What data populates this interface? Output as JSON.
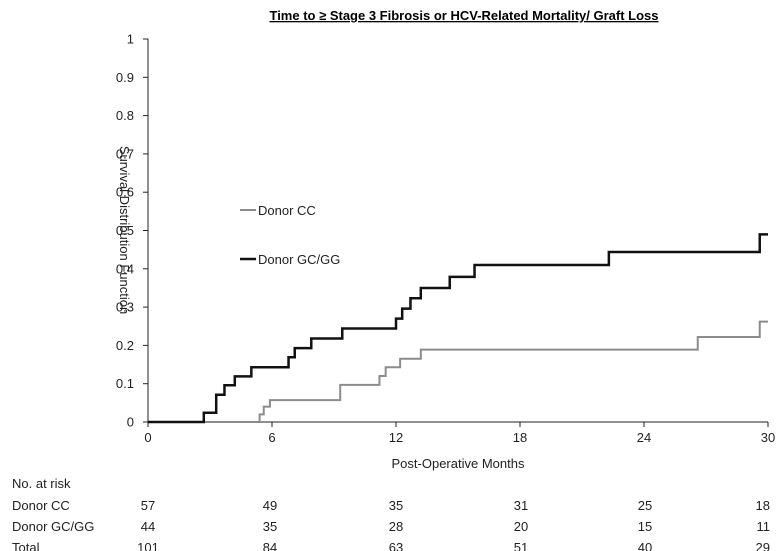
{
  "chart_data": {
    "type": "line",
    "title": "Time to ≥ Stage 3 Fibrosis or HCV-Related Mortality/ Graft Loss",
    "xlabel": "Post-Operative Months",
    "ylabel": "Survival Distribution Function",
    "xlim": [
      0,
      30
    ],
    "ylim": [
      0,
      1
    ],
    "x_ticks": [
      "0",
      "6",
      "12",
      "18",
      "24",
      "30"
    ],
    "y_ticks": [
      "0",
      "0.1",
      "0.2",
      "0.3",
      "0.4",
      "0.5",
      "0.6",
      "0.7",
      "0.8",
      "0.9",
      "1"
    ],
    "legend_placement": "center-left",
    "series": [
      {
        "name": "Donor CC",
        "color": "#8c8c8c",
        "step": true,
        "x": [
          0,
          5.4,
          5.6,
          5.9,
          9.3,
          11.2,
          11.5,
          12.2,
          13.2,
          26.6,
          29.6,
          30
        ],
        "y": [
          0,
          0.02,
          0.04,
          0.057,
          0.097,
          0.12,
          0.143,
          0.165,
          0.189,
          0.222,
          0.262,
          0.262
        ]
      },
      {
        "name": "Donor GC/GG",
        "color": "#111111",
        "step": true,
        "x": [
          0,
          2.7,
          3.3,
          3.7,
          4.2,
          5.0,
          6.8,
          7.1,
          7.9,
          9.4,
          12.0,
          12.3,
          12.7,
          13.2,
          14.6,
          15.8,
          18.1,
          22.3,
          29.6,
          30
        ],
        "y": [
          0,
          0.024,
          0.071,
          0.096,
          0.119,
          0.143,
          0.169,
          0.193,
          0.218,
          0.244,
          0.27,
          0.296,
          0.323,
          0.35,
          0.379,
          0.41,
          0.41,
          0.444,
          0.49,
          0.49
        ]
      }
    ],
    "risk_table": {
      "header": "No. at risk",
      "rows": [
        {
          "label": "Donor CC",
          "values": [
            "57",
            "49",
            "35",
            "31",
            "25",
            "18"
          ]
        },
        {
          "label": "Donor GC/GG",
          "values": [
            "44",
            "35",
            "28",
            "20",
            "15",
            "11"
          ]
        },
        {
          "label": "Total",
          "values": [
            "101",
            "84",
            "63",
            "51",
            "40",
            "29"
          ]
        }
      ]
    }
  }
}
